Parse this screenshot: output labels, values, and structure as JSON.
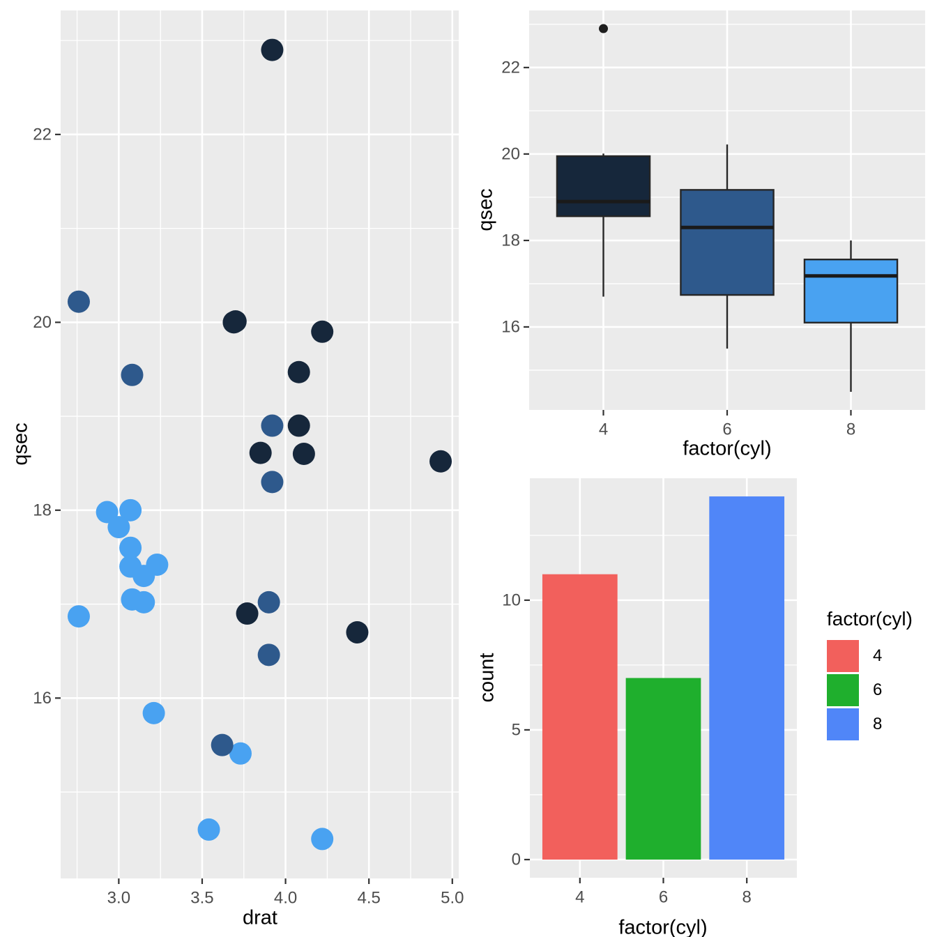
{
  "figure": {
    "background": "#FFFFFF",
    "panel_background": "#EBEBEB",
    "grid_color": "#FFFFFF",
    "axis_text_color": "#4D4D4D",
    "axis_title_color": "#000000"
  },
  "colors": {
    "cyl_fill": {
      "4": "#16273B",
      "6": "#2E598C",
      "8": "#49A2F1"
    },
    "bar_fill": {
      "4": "#F2605C",
      "6": "#1FAF2D",
      "8": "#5086F8"
    },
    "box_outline": "#262626",
    "median_line": "#1A1A1A",
    "outlier": "#1F1F1F"
  },
  "chart_data": [
    {
      "id": "scatter",
      "type": "scatter",
      "title": "",
      "xlabel": "drat",
      "ylabel": "qsec",
      "xlim": [
        2.6515,
        5.0385
      ],
      "ylim": [
        14.08,
        23.32
      ],
      "x_ticks": [
        3.0,
        3.5,
        4.0,
        4.5,
        5.0
      ],
      "x_tick_labels": [
        "3.0",
        "3.5",
        "4.0",
        "4.5",
        "5.0"
      ],
      "x_minor_ticks": [
        2.75,
        3.25,
        3.75,
        4.25,
        4.75
      ],
      "y_ticks": [
        16,
        18,
        20,
        22
      ],
      "y_tick_labels": [
        "16",
        "18",
        "20",
        "22"
      ],
      "y_minor_ticks": [
        15,
        17,
        19,
        21,
        23
      ],
      "grid": true,
      "legend_position": "none",
      "color_mapping": "cyl: 4 = dark navy, 6 = medium blue, 8 = light blue",
      "points": [
        {
          "drat": 3.9,
          "qsec": 16.46,
          "cyl": 6
        },
        {
          "drat": 3.9,
          "qsec": 17.02,
          "cyl": 6
        },
        {
          "drat": 3.85,
          "qsec": 18.61,
          "cyl": 4
        },
        {
          "drat": 3.08,
          "qsec": 19.44,
          "cyl": 6
        },
        {
          "drat": 3.15,
          "qsec": 17.02,
          "cyl": 8
        },
        {
          "drat": 2.76,
          "qsec": 20.22,
          "cyl": 6
        },
        {
          "drat": 3.21,
          "qsec": 15.84,
          "cyl": 8
        },
        {
          "drat": 3.69,
          "qsec": 20.0,
          "cyl": 4
        },
        {
          "drat": 3.92,
          "qsec": 22.9,
          "cyl": 4
        },
        {
          "drat": 3.92,
          "qsec": 18.3,
          "cyl": 6
        },
        {
          "drat": 3.92,
          "qsec": 18.9,
          "cyl": 6
        },
        {
          "drat": 3.07,
          "qsec": 17.4,
          "cyl": 8
        },
        {
          "drat": 3.07,
          "qsec": 17.6,
          "cyl": 8
        },
        {
          "drat": 3.07,
          "qsec": 18.0,
          "cyl": 8
        },
        {
          "drat": 2.93,
          "qsec": 17.98,
          "cyl": 8
        },
        {
          "drat": 3.0,
          "qsec": 17.82,
          "cyl": 8
        },
        {
          "drat": 3.23,
          "qsec": 17.42,
          "cyl": 8
        },
        {
          "drat": 4.08,
          "qsec": 19.47,
          "cyl": 4
        },
        {
          "drat": 4.93,
          "qsec": 18.52,
          "cyl": 4
        },
        {
          "drat": 4.22,
          "qsec": 19.9,
          "cyl": 4
        },
        {
          "drat": 3.7,
          "qsec": 20.01,
          "cyl": 4
        },
        {
          "drat": 2.76,
          "qsec": 16.87,
          "cyl": 8
        },
        {
          "drat": 3.15,
          "qsec": 17.3,
          "cyl": 8
        },
        {
          "drat": 3.73,
          "qsec": 15.41,
          "cyl": 8
        },
        {
          "drat": 3.08,
          "qsec": 17.05,
          "cyl": 8
        },
        {
          "drat": 4.08,
          "qsec": 18.9,
          "cyl": 4
        },
        {
          "drat": 4.43,
          "qsec": 16.7,
          "cyl": 4
        },
        {
          "drat": 3.77,
          "qsec": 16.9,
          "cyl": 4
        },
        {
          "drat": 4.22,
          "qsec": 14.5,
          "cyl": 8
        },
        {
          "drat": 3.62,
          "qsec": 15.5,
          "cyl": 6
        },
        {
          "drat": 3.54,
          "qsec": 14.6,
          "cyl": 8
        },
        {
          "drat": 4.11,
          "qsec": 18.6,
          "cyl": 4
        }
      ]
    },
    {
      "id": "boxplot",
      "type": "boxplot",
      "title": "",
      "xlabel": "factor(cyl)",
      "ylabel": "qsec",
      "categories": [
        "4",
        "6",
        "8"
      ],
      "ylim": [
        14.08,
        23.32
      ],
      "y_ticks": [
        16,
        18,
        20,
        22
      ],
      "y_tick_labels": [
        "16",
        "18",
        "20",
        "22"
      ],
      "y_minor_ticks": [
        15,
        17,
        19,
        21,
        23
      ],
      "grid": true,
      "legend_position": "none",
      "boxes": [
        {
          "category": "4",
          "lower_whisker": 16.7,
          "q1": 18.56,
          "median": 18.9,
          "q3": 19.95,
          "upper_whisker": 20.01,
          "outliers": [
            22.9
          ],
          "fill": "#16273B"
        },
        {
          "category": "6",
          "lower_whisker": 15.5,
          "q1": 16.74,
          "median": 18.3,
          "q3": 19.17,
          "upper_whisker": 20.22,
          "outliers": [],
          "fill": "#2E598C"
        },
        {
          "category": "8",
          "lower_whisker": 14.5,
          "q1": 16.1,
          "median": 17.18,
          "q3": 17.56,
          "upper_whisker": 18.0,
          "outliers": [],
          "fill": "#49A2F1"
        }
      ]
    },
    {
      "id": "bar",
      "type": "bar",
      "title": "",
      "xlabel": "factor(cyl)",
      "ylabel": "count",
      "categories": [
        "4",
        "6",
        "8"
      ],
      "values": [
        11,
        7,
        14
      ],
      "ylim": [
        -0.7,
        14.7
      ],
      "y_ticks": [
        0,
        5,
        10
      ],
      "y_tick_labels": [
        "0",
        "5",
        "10"
      ],
      "y_minor_ticks": [
        2.5,
        7.5,
        12.5
      ],
      "grid": true,
      "legend_position": "right",
      "legend": {
        "title": "factor(cyl)",
        "entries": [
          {
            "label": "4",
            "color": "#F2605C"
          },
          {
            "label": "6",
            "color": "#1FAF2D"
          },
          {
            "label": "8",
            "color": "#5086F8"
          }
        ]
      }
    }
  ]
}
